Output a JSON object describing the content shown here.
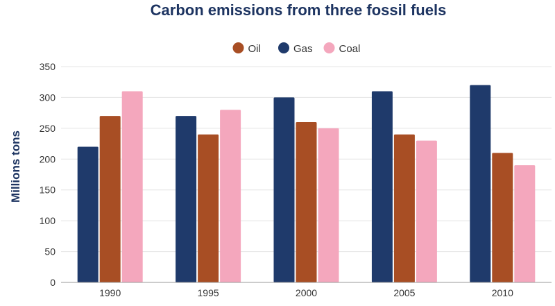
{
  "chart_data": {
    "type": "bar",
    "title": "Carbon emissions from three fossil fuels",
    "xlabel": "",
    "ylabel": "Millions tons",
    "categories": [
      "1990",
      "1995",
      "2000",
      "2005",
      "2010"
    ],
    "series": [
      {
        "name": "Gas",
        "color": "#1f3a6b",
        "values": [
          220,
          270,
          300,
          310,
          320
        ]
      },
      {
        "name": "Oil",
        "color": "#a84e24",
        "values": [
          270,
          240,
          260,
          240,
          210
        ]
      },
      {
        "name": "Coal",
        "color": "#f4a7bd",
        "values": [
          310,
          280,
          250,
          230,
          190
        ]
      }
    ],
    "legend_order": [
      "Oil",
      "Gas",
      "Coal"
    ],
    "legend_position": "top-center",
    "ylim": [
      0,
      350
    ],
    "yticks": [
      0,
      50,
      100,
      150,
      200,
      250,
      300,
      350
    ],
    "grid": true
  }
}
